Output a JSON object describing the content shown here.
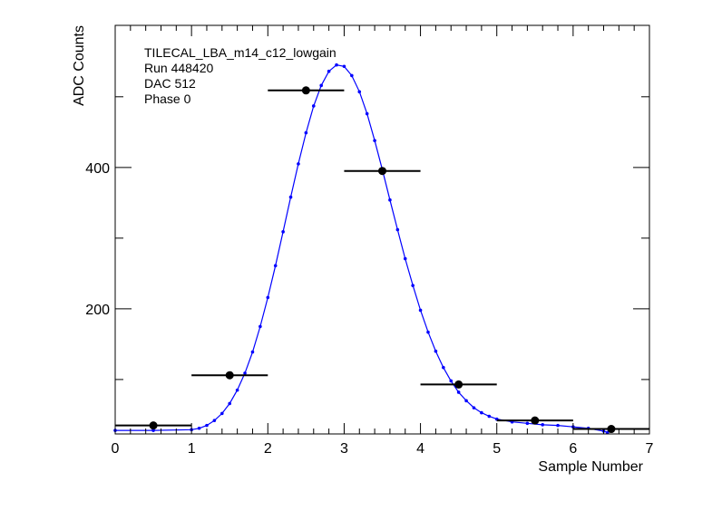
{
  "chart_data": {
    "type": "scatter",
    "xlabel": "Sample Number",
    "ylabel": "ADC Counts",
    "xlim": [
      0,
      7
    ],
    "ylim": [
      23,
      601
    ],
    "x_ticks": [
      0,
      1,
      2,
      3,
      4,
      5,
      6,
      7
    ],
    "x_tick_labels": [
      "0",
      "1",
      "2",
      "3",
      "4",
      "5",
      "6",
      "7"
    ],
    "y_ticks": [
      200,
      400
    ],
    "y_tick_labels": [
      "200",
      "400"
    ],
    "grid": false,
    "annotations": [
      "TILECAL_LBA_m14_c12_lowgain",
      "Run 448420",
      "DAC 512",
      "Phase 0"
    ],
    "series": [
      {
        "values": [
          {
            "x": 0.5,
            "y": 35,
            "xerr": 0.5
          },
          {
            "x": 1.5,
            "y": 106,
            "xerr": 0.5
          },
          {
            "x": 2.5,
            "y": 509,
            "xerr": 0.5
          },
          {
            "x": 3.5,
            "y": 395,
            "xerr": 0.5
          },
          {
            "x": 4.5,
            "y": 93,
            "xerr": 0.5
          },
          {
            "x": 5.5,
            "y": 42,
            "xerr": 0.5
          },
          {
            "x": 6.5,
            "y": 30,
            "xerr": 0.5
          }
        ],
        "color": "#000000"
      },
      {
        "type": "line",
        "values": [
          {
            "x": 0.0,
            "y": 28
          },
          {
            "x": 0.5,
            "y": 28
          },
          {
            "x": 1.0,
            "y": 29
          },
          {
            "x": 1.1,
            "y": 31
          },
          {
            "x": 1.2,
            "y": 35
          },
          {
            "x": 1.3,
            "y": 42
          },
          {
            "x": 1.4,
            "y": 52
          },
          {
            "x": 1.5,
            "y": 66
          },
          {
            "x": 1.6,
            "y": 85
          },
          {
            "x": 1.7,
            "y": 109
          },
          {
            "x": 1.8,
            "y": 139
          },
          {
            "x": 1.9,
            "y": 175
          },
          {
            "x": 2.0,
            "y": 216
          },
          {
            "x": 2.1,
            "y": 261
          },
          {
            "x": 2.2,
            "y": 309
          },
          {
            "x": 2.3,
            "y": 358
          },
          {
            "x": 2.4,
            "y": 405
          },
          {
            "x": 2.5,
            "y": 449
          },
          {
            "x": 2.6,
            "y": 487
          },
          {
            "x": 2.7,
            "y": 516
          },
          {
            "x": 2.8,
            "y": 536
          },
          {
            "x": 2.9,
            "y": 545
          },
          {
            "x": 3.0,
            "y": 543
          },
          {
            "x": 3.1,
            "y": 530
          },
          {
            "x": 3.2,
            "y": 507
          },
          {
            "x": 3.3,
            "y": 476
          },
          {
            "x": 3.4,
            "y": 438
          },
          {
            "x": 3.5,
            "y": 397
          },
          {
            "x": 3.6,
            "y": 354
          },
          {
            "x": 3.7,
            "y": 312
          },
          {
            "x": 3.8,
            "y": 271
          },
          {
            "x": 3.9,
            "y": 233
          },
          {
            "x": 4.0,
            "y": 198
          },
          {
            "x": 4.1,
            "y": 167
          },
          {
            "x": 4.2,
            "y": 140
          },
          {
            "x": 4.3,
            "y": 117
          },
          {
            "x": 4.4,
            "y": 98
          },
          {
            "x": 4.5,
            "y": 82
          },
          {
            "x": 4.6,
            "y": 70
          },
          {
            "x": 4.7,
            "y": 60
          },
          {
            "x": 4.8,
            "y": 53
          },
          {
            "x": 4.9,
            "y": 48
          },
          {
            "x": 5.0,
            "y": 44
          },
          {
            "x": 5.2,
            "y": 40
          },
          {
            "x": 5.4,
            "y": 38
          },
          {
            "x": 5.6,
            "y": 36
          },
          {
            "x": 5.8,
            "y": 35
          },
          {
            "x": 6.0,
            "y": 33
          },
          {
            "x": 6.2,
            "y": 31
          },
          {
            "x": 6.4,
            "y": 27
          },
          {
            "x": 6.45,
            "y": 25
          }
        ],
        "color": "#0000ff"
      }
    ]
  }
}
